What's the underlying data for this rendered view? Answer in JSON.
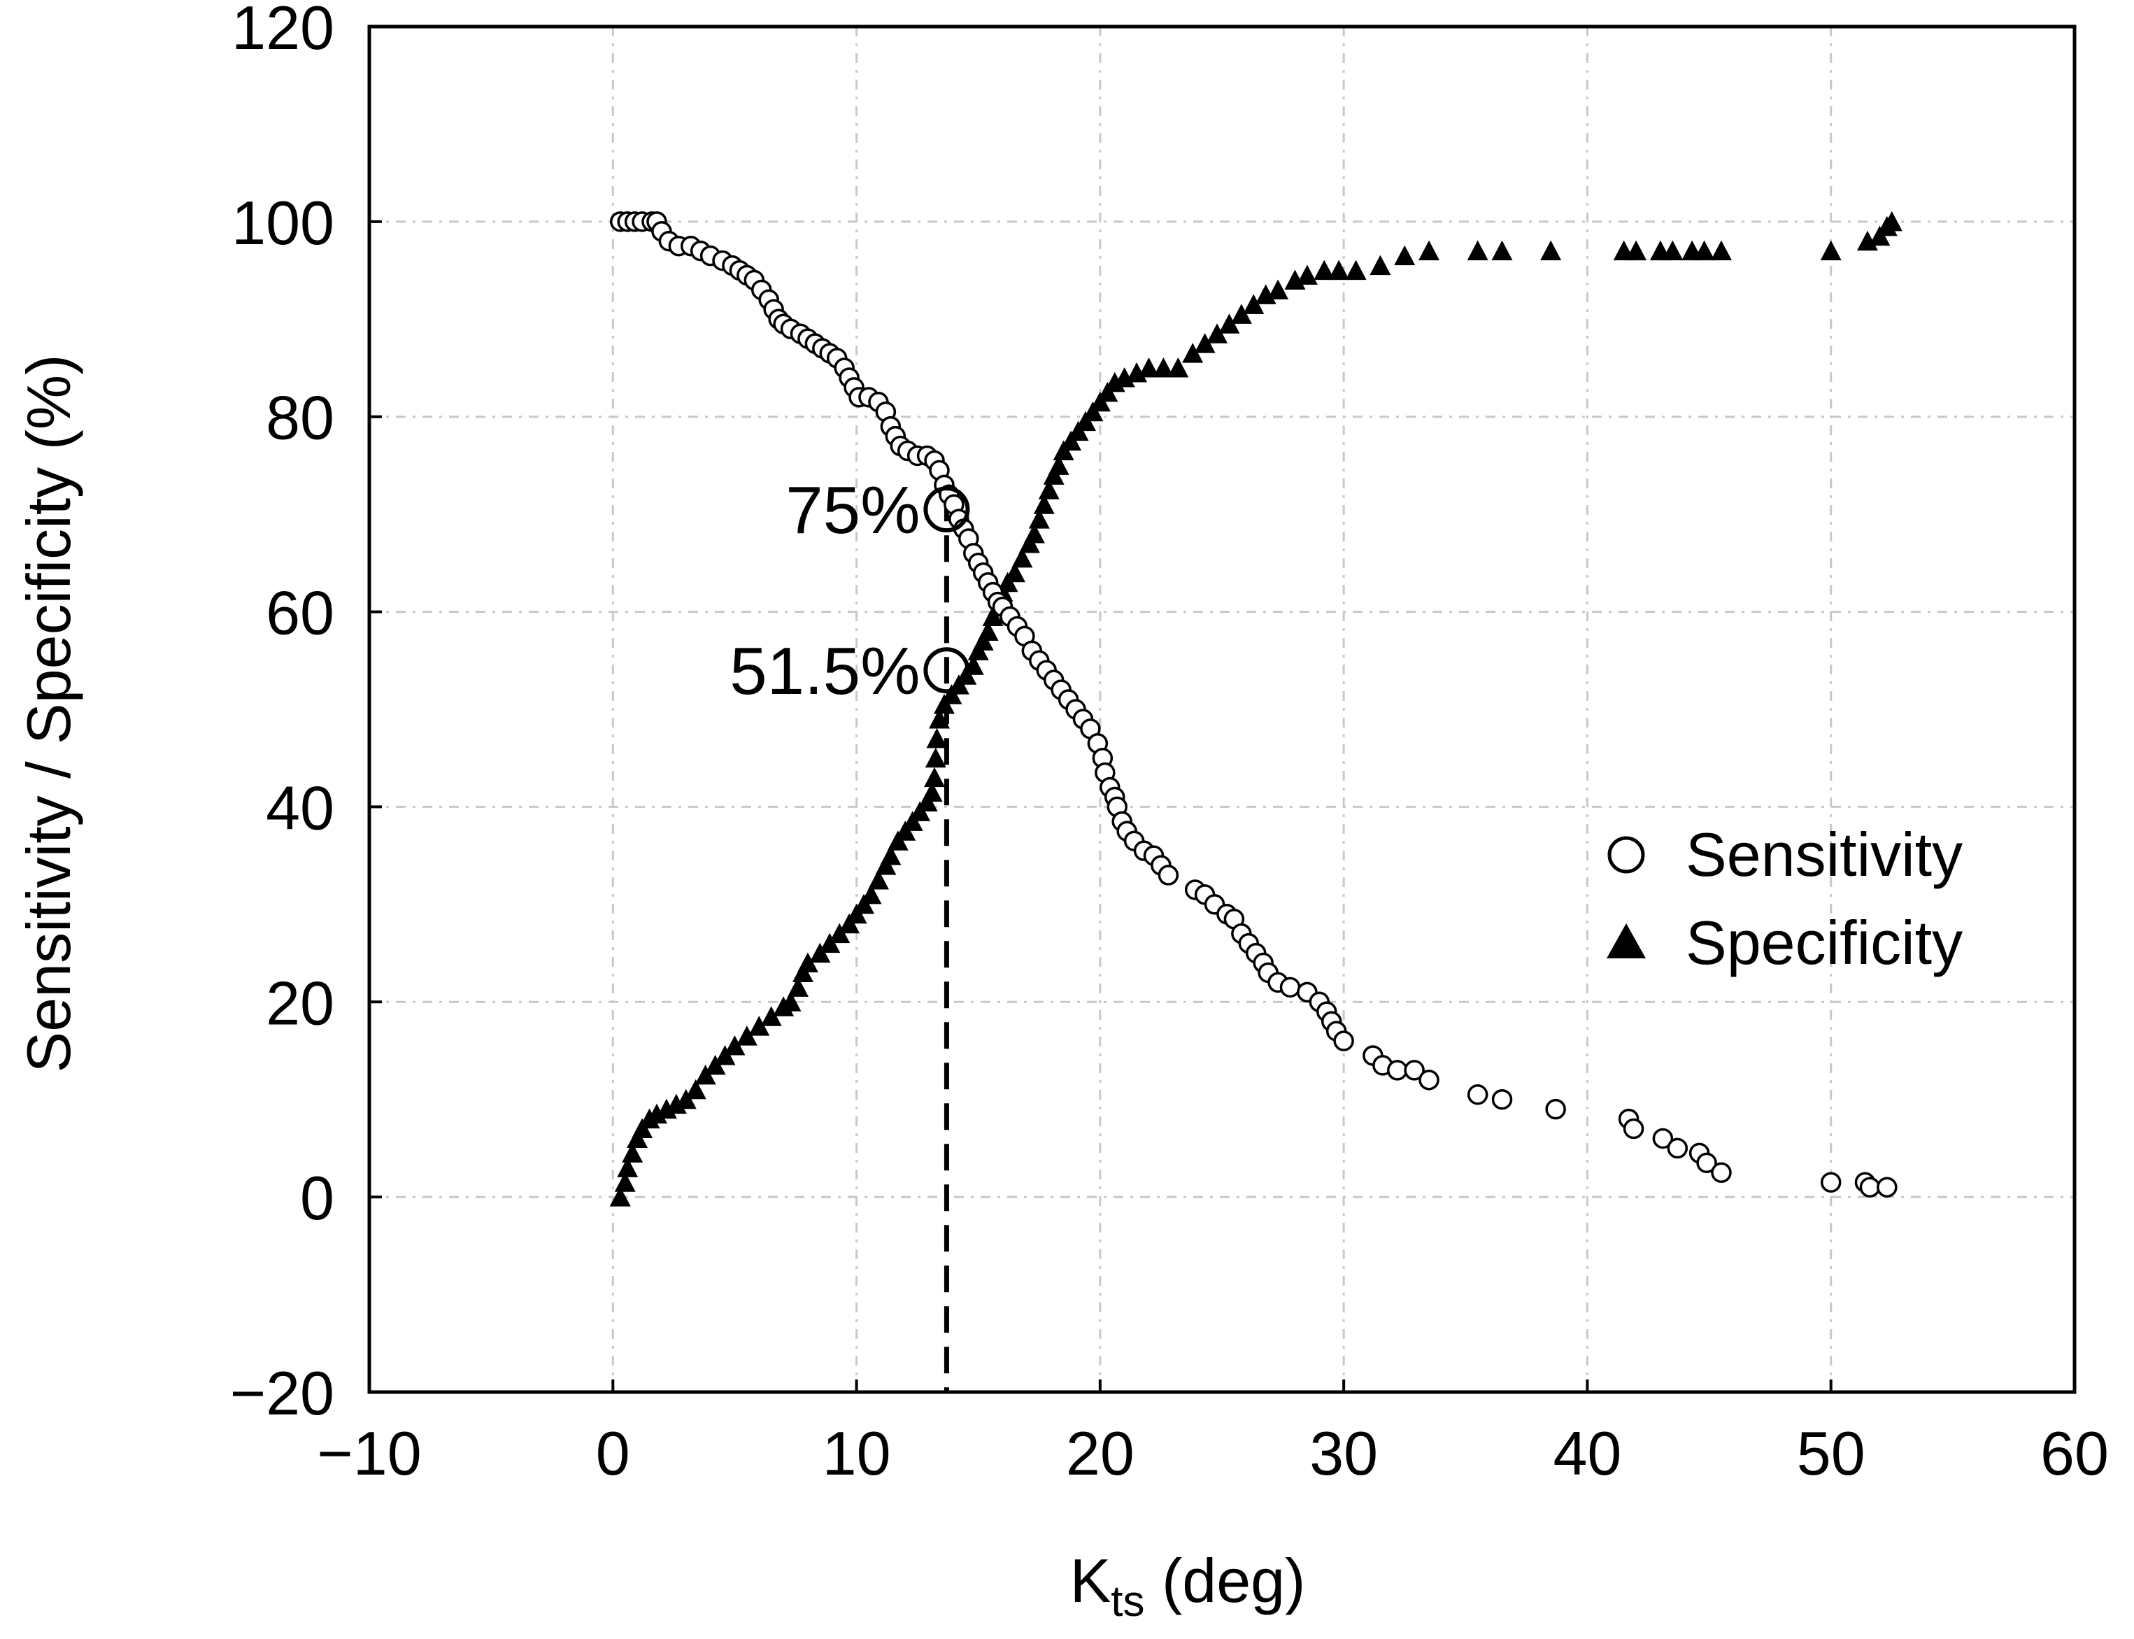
{
  "chart_data": {
    "type": "scatter",
    "title": "",
    "xlabel": {
      "main": "K",
      "sub": "ts",
      "rest": " (deg)"
    },
    "ylabel": "Sensitivity / Specificity (%)",
    "xlim": [
      -10,
      60
    ],
    "ylim": [
      -20,
      120
    ],
    "xticks": [
      -10,
      0,
      10,
      20,
      30,
      40,
      50,
      60
    ],
    "yticks": [
      -20,
      0,
      20,
      40,
      60,
      80,
      100,
      120
    ],
    "xtick_labels": [
      "−10",
      "0",
      "10",
      "20",
      "30",
      "40",
      "50",
      "60"
    ],
    "ytick_labels": [
      "−20",
      "0",
      "20",
      "40",
      "60",
      "80",
      "100",
      "120"
    ],
    "grid": true,
    "legend_position": "right",
    "series": [
      {
        "name": "Sensitivity",
        "marker": "open-circle",
        "points": [
          [
            0.3,
            100
          ],
          [
            0.6,
            100
          ],
          [
            0.9,
            100
          ],
          [
            1.2,
            100
          ],
          [
            1.6,
            100
          ],
          [
            1.8,
            100
          ],
          [
            2.0,
            99
          ],
          [
            2.3,
            98
          ],
          [
            2.7,
            97.5
          ],
          [
            3.2,
            97.5
          ],
          [
            3.6,
            97
          ],
          [
            4.0,
            96.5
          ],
          [
            4.5,
            96
          ],
          [
            4.9,
            95.5
          ],
          [
            5.2,
            95
          ],
          [
            5.5,
            94.5
          ],
          [
            5.8,
            94
          ],
          [
            6.1,
            93
          ],
          [
            6.4,
            92
          ],
          [
            6.6,
            91
          ],
          [
            6.8,
            90
          ],
          [
            7.0,
            89.5
          ],
          [
            7.3,
            89
          ],
          [
            7.7,
            88.5
          ],
          [
            8.0,
            88
          ],
          [
            8.3,
            87.5
          ],
          [
            8.6,
            87
          ],
          [
            8.9,
            86.5
          ],
          [
            9.2,
            86
          ],
          [
            9.5,
            85
          ],
          [
            9.7,
            84
          ],
          [
            9.9,
            83
          ],
          [
            10.1,
            82
          ],
          [
            10.5,
            82
          ],
          [
            10.9,
            81.5
          ],
          [
            11.2,
            80.5
          ],
          [
            11.4,
            79
          ],
          [
            11.6,
            78
          ],
          [
            11.8,
            77
          ],
          [
            12.1,
            76.5
          ],
          [
            12.5,
            76
          ],
          [
            12.9,
            76
          ],
          [
            13.2,
            75.5
          ],
          [
            13.4,
            74.5
          ],
          [
            13.6,
            73
          ],
          [
            13.8,
            72
          ],
          [
            14.0,
            71
          ],
          [
            14.2,
            69.5
          ],
          [
            14.4,
            68.5
          ],
          [
            14.6,
            67.5
          ],
          [
            14.8,
            66
          ],
          [
            15.0,
            65
          ],
          [
            15.2,
            64
          ],
          [
            15.4,
            63
          ],
          [
            15.6,
            62
          ],
          [
            15.8,
            61
          ],
          [
            16.0,
            60.5
          ],
          [
            16.3,
            59.5
          ],
          [
            16.6,
            58.5
          ],
          [
            16.9,
            57.5
          ],
          [
            17.2,
            56
          ],
          [
            17.5,
            55
          ],
          [
            17.8,
            54
          ],
          [
            18.1,
            53
          ],
          [
            18.4,
            52
          ],
          [
            18.7,
            51
          ],
          [
            19.0,
            50
          ],
          [
            19.3,
            49
          ],
          [
            19.6,
            48
          ],
          [
            19.9,
            46.5
          ],
          [
            20.1,
            45
          ],
          [
            20.2,
            43.5
          ],
          [
            20.4,
            42
          ],
          [
            20.6,
            41
          ],
          [
            20.7,
            40
          ],
          [
            20.9,
            38.5
          ],
          [
            21.1,
            37.5
          ],
          [
            21.4,
            36.5
          ],
          [
            21.8,
            35.5
          ],
          [
            22.2,
            35
          ],
          [
            22.5,
            34
          ],
          [
            22.8,
            33
          ],
          [
            23.9,
            31.5
          ],
          [
            24.3,
            31
          ],
          [
            24.7,
            30
          ],
          [
            25.2,
            29
          ],
          [
            25.5,
            28.5
          ],
          [
            25.8,
            27
          ],
          [
            26.1,
            26
          ],
          [
            26.4,
            25
          ],
          [
            26.7,
            24
          ],
          [
            26.9,
            23
          ],
          [
            27.3,
            22
          ],
          [
            27.8,
            21.5
          ],
          [
            28.5,
            21
          ],
          [
            29.0,
            20
          ],
          [
            29.3,
            19
          ],
          [
            29.5,
            18
          ],
          [
            29.7,
            17
          ],
          [
            30.0,
            16
          ],
          [
            31.2,
            14.5
          ],
          [
            31.6,
            13.5
          ],
          [
            32.2,
            13
          ],
          [
            32.9,
            13
          ],
          [
            33.5,
            12
          ],
          [
            35.5,
            10.5
          ],
          [
            36.5,
            10
          ],
          [
            38.7,
            9
          ],
          [
            41.7,
            8
          ],
          [
            41.9,
            7
          ],
          [
            43.1,
            6
          ],
          [
            43.7,
            5
          ],
          [
            44.6,
            4.5
          ],
          [
            44.9,
            3.5
          ],
          [
            45.5,
            2.5
          ],
          [
            50.0,
            1.5
          ],
          [
            51.4,
            1.5
          ],
          [
            51.6,
            1
          ],
          [
            52.3,
            1
          ]
        ]
      },
      {
        "name": "Specificity",
        "marker": "filled-triangle",
        "points": [
          [
            0.3,
            0
          ],
          [
            0.5,
            1.5
          ],
          [
            0.6,
            3
          ],
          [
            0.8,
            4.5
          ],
          [
            1.0,
            6
          ],
          [
            1.2,
            7
          ],
          [
            1.5,
            8
          ],
          [
            1.8,
            8.5
          ],
          [
            2.2,
            9
          ],
          [
            2.6,
            9.5
          ],
          [
            3.0,
            10
          ],
          [
            3.4,
            11
          ],
          [
            3.8,
            12.5
          ],
          [
            4.2,
            13.5
          ],
          [
            4.6,
            14.5
          ],
          [
            5.0,
            15.5
          ],
          [
            5.5,
            16.5
          ],
          [
            6.0,
            17.5
          ],
          [
            6.5,
            18.5
          ],
          [
            7.0,
            19.5
          ],
          [
            7.3,
            20
          ],
          [
            7.6,
            21.5
          ],
          [
            7.8,
            23
          ],
          [
            8.0,
            24
          ],
          [
            8.5,
            25
          ],
          [
            8.9,
            26
          ],
          [
            9.3,
            27
          ],
          [
            9.7,
            28
          ],
          [
            10.0,
            29
          ],
          [
            10.3,
            30
          ],
          [
            10.6,
            31
          ],
          [
            10.9,
            32.5
          ],
          [
            11.2,
            34
          ],
          [
            11.4,
            35
          ],
          [
            11.7,
            36.5
          ],
          [
            12.0,
            37.5
          ],
          [
            12.3,
            38.5
          ],
          [
            12.6,
            39.5
          ],
          [
            12.9,
            40.5
          ],
          [
            13.1,
            41.5
          ],
          [
            13.2,
            43
          ],
          [
            13.25,
            45
          ],
          [
            13.3,
            47
          ],
          [
            13.4,
            49
          ],
          [
            13.6,
            50.5
          ],
          [
            13.9,
            51.5
          ],
          [
            14.2,
            52.5
          ],
          [
            14.5,
            53.5
          ],
          [
            14.8,
            54.5
          ],
          [
            15.0,
            56
          ],
          [
            15.2,
            57
          ],
          [
            15.4,
            58
          ],
          [
            15.6,
            59.5
          ],
          [
            15.8,
            60.5
          ],
          [
            16.0,
            62
          ],
          [
            16.2,
            63
          ],
          [
            16.5,
            64
          ],
          [
            16.8,
            65.5
          ],
          [
            17.1,
            67
          ],
          [
            17.3,
            68
          ],
          [
            17.5,
            69.5
          ],
          [
            17.7,
            71
          ],
          [
            17.9,
            72.5
          ],
          [
            18.1,
            74
          ],
          [
            18.3,
            75
          ],
          [
            18.5,
            76.5
          ],
          [
            18.8,
            77.5
          ],
          [
            19.1,
            78.5
          ],
          [
            19.4,
            79.5
          ],
          [
            19.7,
            80.5
          ],
          [
            20.0,
            81.5
          ],
          [
            20.3,
            82.5
          ],
          [
            20.6,
            83.5
          ],
          [
            21.0,
            84
          ],
          [
            21.5,
            84.5
          ],
          [
            22.0,
            85
          ],
          [
            22.6,
            85
          ],
          [
            23.2,
            85
          ],
          [
            23.8,
            86.5
          ],
          [
            24.3,
            87.5
          ],
          [
            24.8,
            88.5
          ],
          [
            25.3,
            89.5
          ],
          [
            25.8,
            90.5
          ],
          [
            26.3,
            91.5
          ],
          [
            26.8,
            92.5
          ],
          [
            27.3,
            93
          ],
          [
            28.0,
            94
          ],
          [
            28.5,
            94.5
          ],
          [
            29.2,
            95
          ],
          [
            29.8,
            95
          ],
          [
            30.5,
            95
          ],
          [
            31.5,
            95.5
          ],
          [
            32.5,
            96.5
          ],
          [
            33.5,
            97
          ],
          [
            35.5,
            97
          ],
          [
            36.5,
            97
          ],
          [
            38.5,
            97
          ],
          [
            41.5,
            97
          ],
          [
            42.0,
            97
          ],
          [
            43.0,
            97
          ],
          [
            43.5,
            97
          ],
          [
            44.3,
            97
          ],
          [
            44.8,
            97
          ],
          [
            45.5,
            97
          ],
          [
            50.0,
            97
          ],
          [
            51.5,
            98
          ],
          [
            52.0,
            98.5
          ],
          [
            52.3,
            99.5
          ],
          [
            52.5,
            100
          ]
        ]
      }
    ],
    "cutoff": {
      "x": 13.7,
      "y_from": -20,
      "y_to": 72
    },
    "annotations": [
      {
        "label": "75%",
        "x": 13.7,
        "y": 70.5
      },
      {
        "label": "51.5%",
        "x": 13.7,
        "y": 54
      }
    ]
  }
}
